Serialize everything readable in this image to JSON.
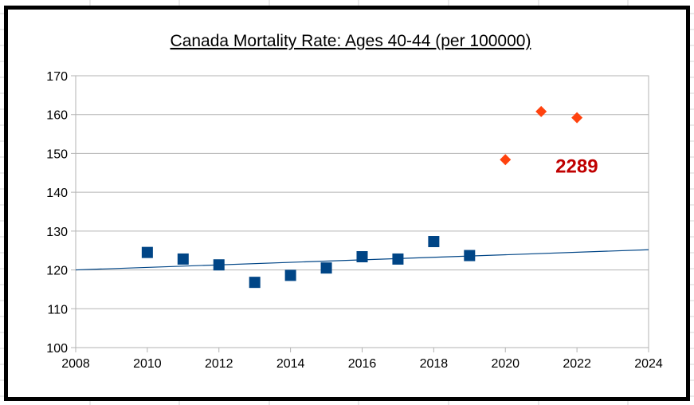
{
  "chart_data": {
    "type": "scatter",
    "title": "Canada Mortality Rate: Ages 40-44 (per 100000)",
    "xlabel": "",
    "ylabel": "",
    "xlim": [
      2008,
      2024
    ],
    "ylim": [
      100,
      170
    ],
    "xticks": [
      "2008",
      "2010",
      "2012",
      "2014",
      "2016",
      "2018",
      "2020",
      "2022",
      "2024"
    ],
    "yticks": [
      "100",
      "110",
      "120",
      "130",
      "140",
      "150",
      "160",
      "170"
    ],
    "grid": "horizontal",
    "legend": "none",
    "series": [
      {
        "marker": "square",
        "color": "#004586",
        "points": [
          [
            2010,
            124.5
          ],
          [
            2011,
            122.8
          ],
          [
            2012,
            121.3
          ],
          [
            2013,
            116.8
          ],
          [
            2014,
            118.6
          ],
          [
            2015,
            120.5
          ],
          [
            2016,
            123.4
          ],
          [
            2017,
            122.8
          ],
          [
            2018,
            127.3
          ],
          [
            2019,
            123.7
          ]
        ]
      },
      {
        "marker": "diamond",
        "color": "#ff420e",
        "points": [
          [
            2020,
            148.4
          ],
          [
            2021,
            160.8
          ],
          [
            2022,
            159.2
          ]
        ]
      }
    ],
    "trendline": {
      "color": "#004586",
      "from": [
        2008,
        120.0
      ],
      "to": [
        2024,
        125.2
      ]
    },
    "annotations": [
      {
        "text": "2289",
        "x": 2021.4,
        "y": 145.1
      }
    ]
  }
}
